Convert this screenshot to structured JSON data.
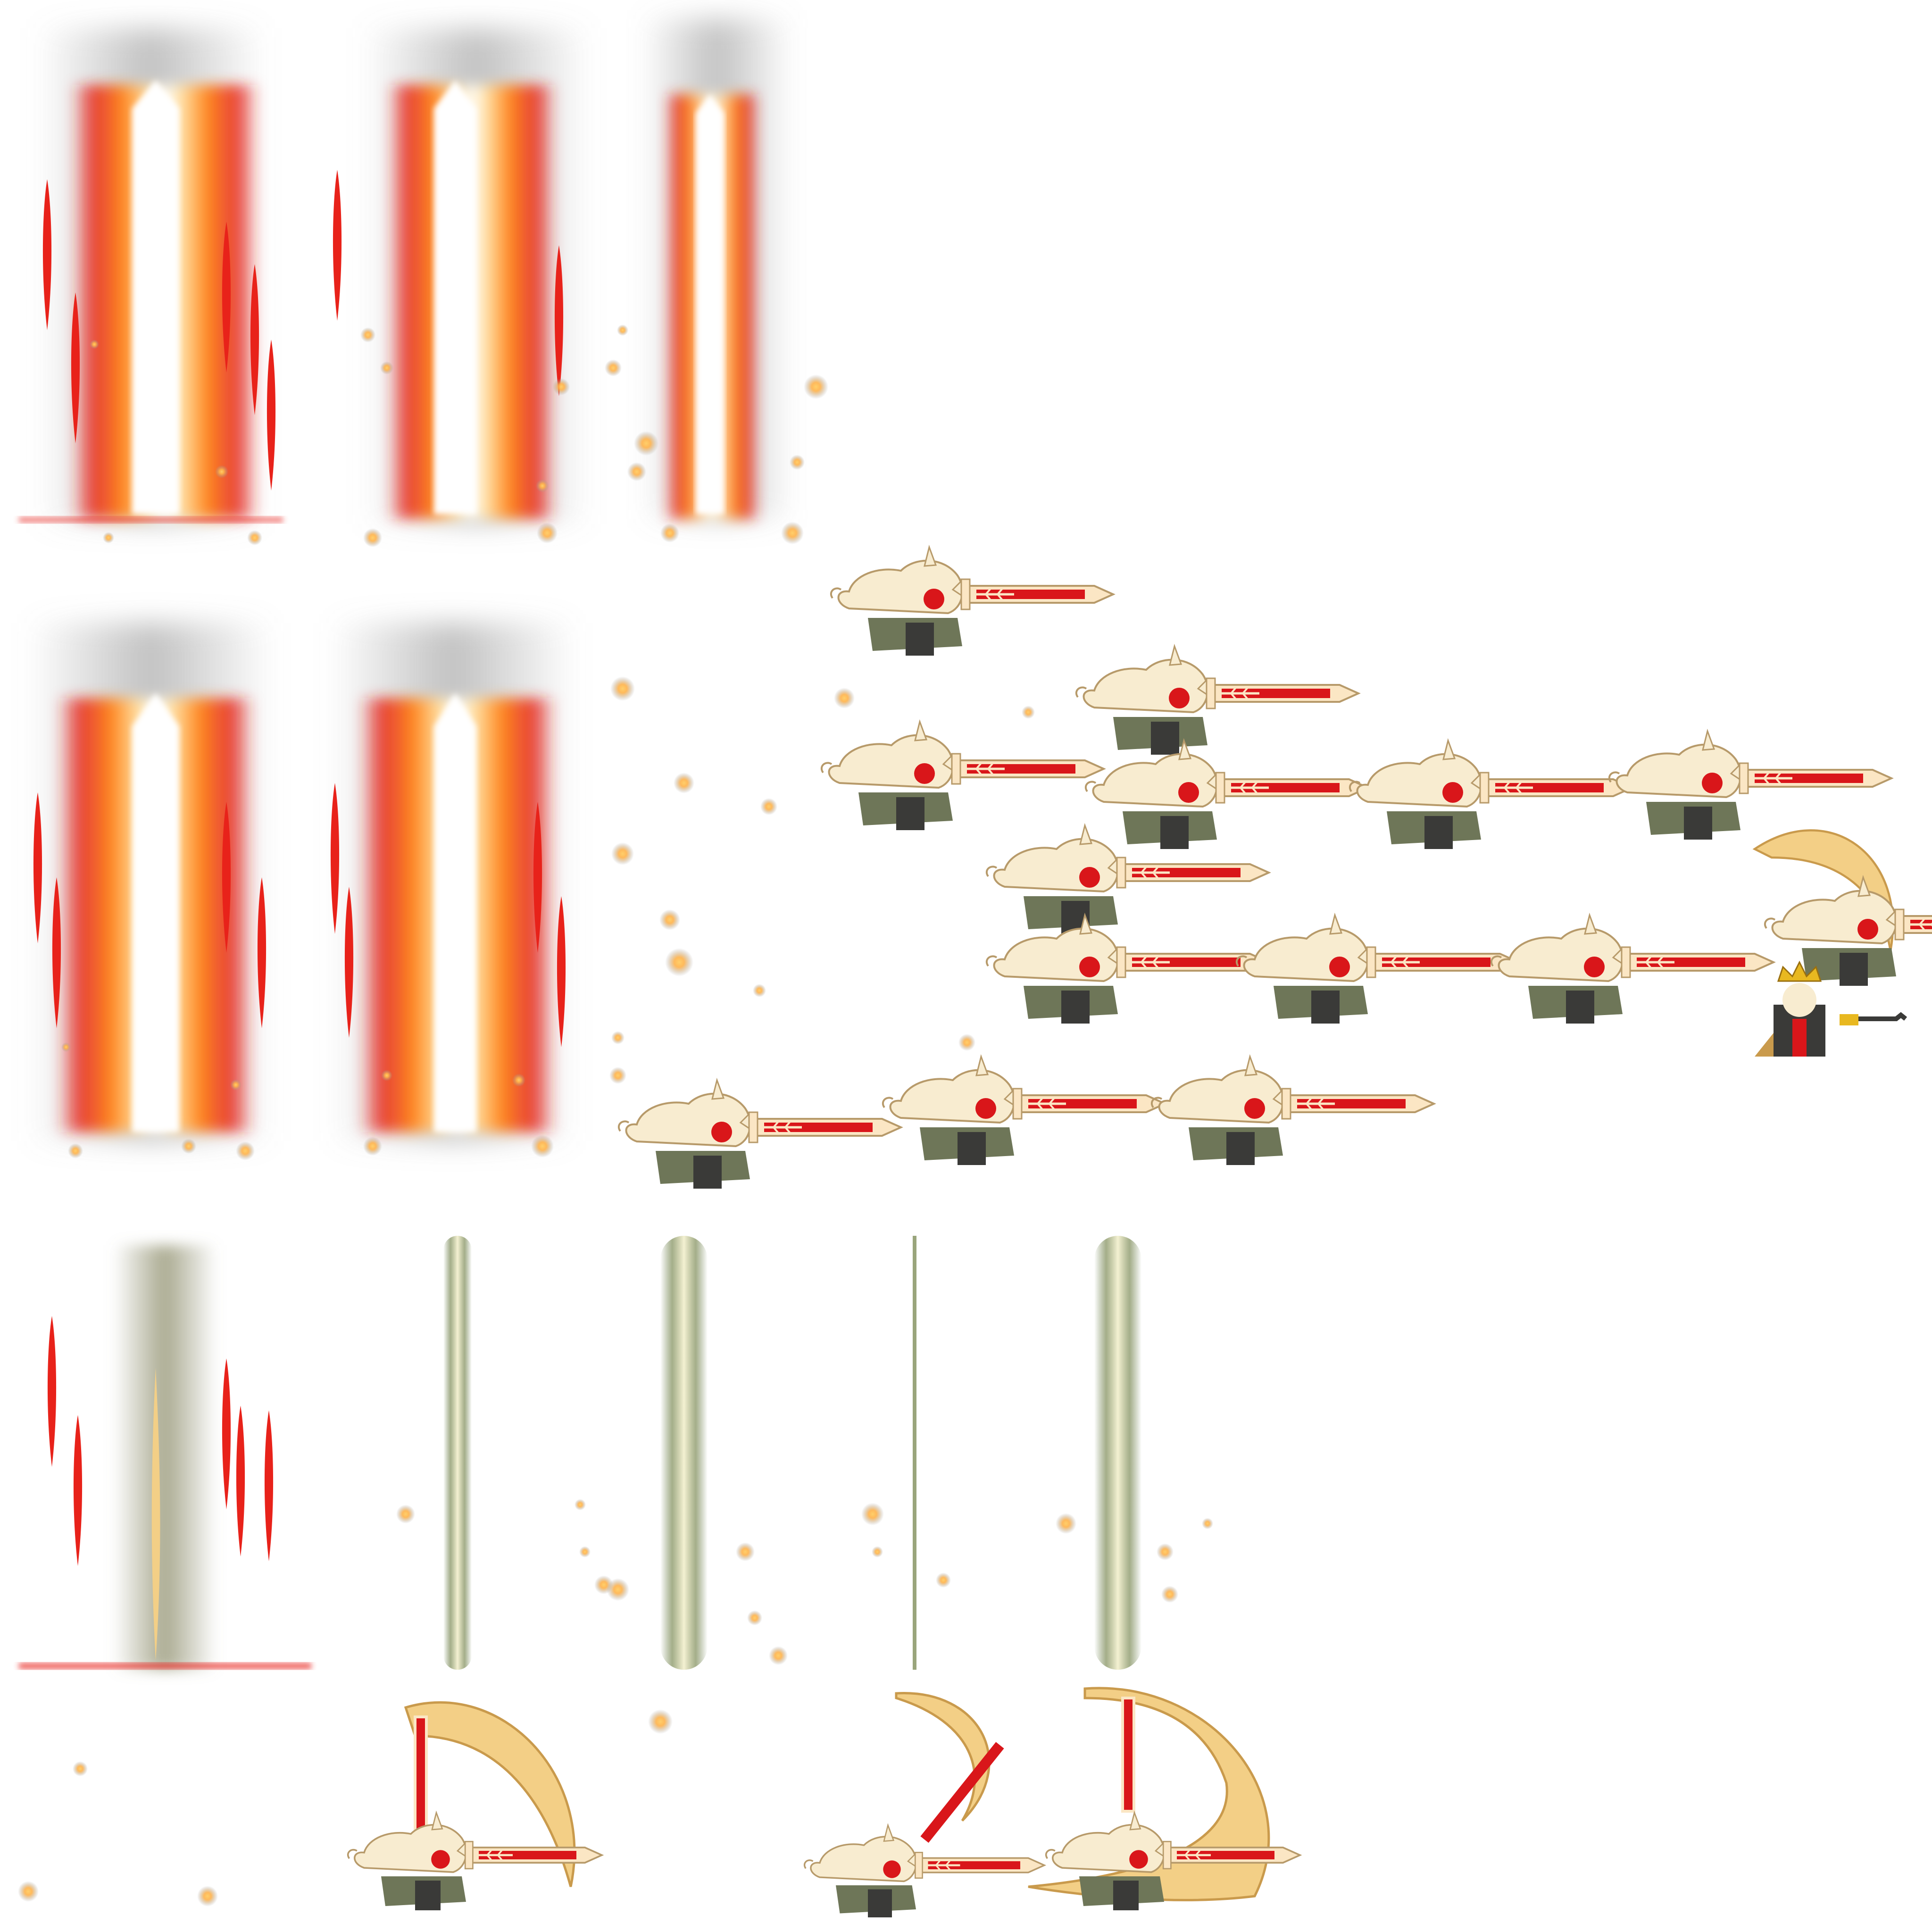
{
  "sheet": {
    "background": "#ffffff",
    "content": "sprite-sheet"
  },
  "palette": {
    "beam_core": "#ffffff",
    "beam_warm": "#ffd98a",
    "beam_orange": "#ff8a1e",
    "beam_red": "#e8221a",
    "smoke": "#8f8f8f",
    "olive": "#9aa57c",
    "olive_dark": "#6e7658",
    "cream": "#f8ecd0",
    "crescent": "#f3cf86",
    "sword_red": "#d9161a",
    "sword_cream": "#fbe6c4",
    "gold": "#e8b820",
    "dark": "#3a3a38"
  },
  "sprite_groups": [
    {
      "name": "pillar-of-light-frames",
      "count": 5
    },
    {
      "name": "faded-pillar-frame",
      "count": 1
    },
    {
      "name": "green-beam-frames",
      "count": 4
    },
    {
      "name": "swordsman-thrust-frames",
      "count": 14
    },
    {
      "name": "swordsman-crescent-slash-frames",
      "count": 4
    },
    {
      "name": "crowned-king-sprite",
      "count": 1
    }
  ]
}
